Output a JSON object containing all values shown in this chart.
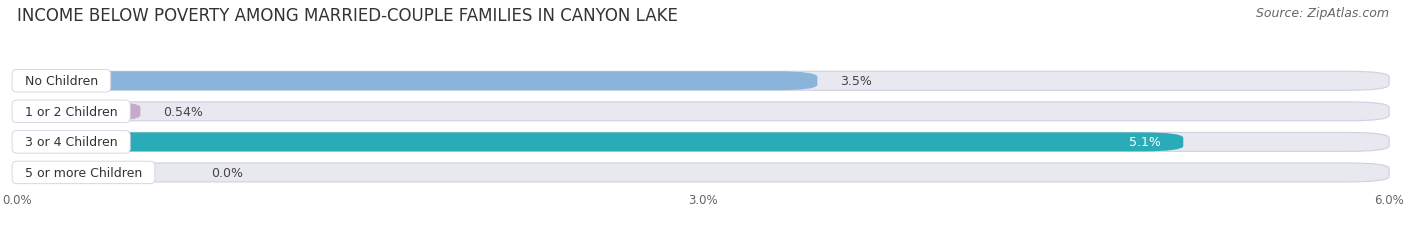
{
  "title": "INCOME BELOW POVERTY AMONG MARRIED-COUPLE FAMILIES IN CANYON LAKE",
  "source": "Source: ZipAtlas.com",
  "categories": [
    "No Children",
    "1 or 2 Children",
    "3 or 4 Children",
    "5 or more Children"
  ],
  "values": [
    3.5,
    0.54,
    5.1,
    0.0
  ],
  "value_labels": [
    "3.5%",
    "0.54%",
    "5.1%",
    "0.0%"
  ],
  "bar_colors": [
    "#8ab4d9",
    "#c9a8c9",
    "#2aacb8",
    "#b3b8e0"
  ],
  "xlim": [
    0,
    6.0
  ],
  "xticks": [
    0.0,
    3.0,
    6.0
  ],
  "xticklabels": [
    "0.0%",
    "3.0%",
    "6.0%"
  ],
  "bg_color": "#f5f5fa",
  "bar_bg_color": "#e8e8f0",
  "title_fontsize": 12,
  "source_fontsize": 9,
  "label_fontsize": 9,
  "value_fontsize": 9,
  "bar_height": 0.62,
  "bar_gap": 0.38
}
